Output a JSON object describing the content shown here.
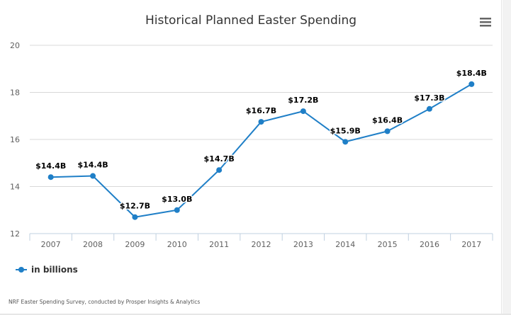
{
  "chart_data": {
    "type": "line",
    "title": "Historical Planned Easter Spending",
    "categories": [
      "2007",
      "2008",
      "2009",
      "2010",
      "2011",
      "2012",
      "2013",
      "2014",
      "2015",
      "2016",
      "2017"
    ],
    "series": [
      {
        "name": "in billions",
        "values": [
          14.4,
          14.45,
          12.7,
          13.0,
          14.7,
          16.75,
          17.2,
          15.9,
          16.35,
          17.3,
          18.35
        ],
        "labels": [
          "$14.4B",
          "$14.4B",
          "$12.7B",
          "$13.0B",
          "$14.7B",
          "$16.7B",
          "$17.2B",
          "$15.9B",
          "$16.4B",
          "$17.3B",
          "$18.4B"
        ],
        "color": "#1f7fc7"
      }
    ],
    "yticks": [
      12,
      14,
      16,
      18,
      20
    ],
    "ylim": [
      12,
      20
    ],
    "grid": true,
    "legend": "bottom-left",
    "credits": "NRF Easter Spending Survey, conducted by Prosper Insights & Analytics"
  },
  "menu": {
    "icon": "hamburger-menu-icon"
  },
  "colors": {
    "grid": "#d8d8d8",
    "axis": "#c0d0e0",
    "line": "#1f7fc7"
  }
}
